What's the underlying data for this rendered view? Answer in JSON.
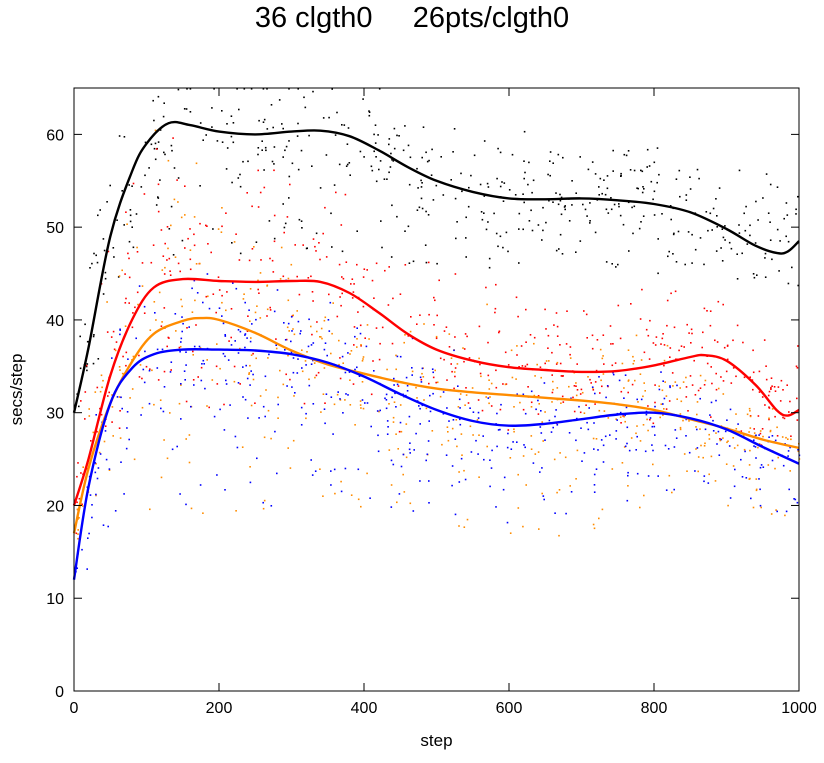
{
  "title": "36 clgth0     26pts/clgth0",
  "chart_data": {
    "type": "scatter",
    "title": "36 clgth0     26pts/clgth0",
    "xlabel": "step",
    "ylabel": "secs/step",
    "xlim": [
      0,
      1000
    ],
    "ylim": [
      0,
      65
    ],
    "xticks": [
      0,
      200,
      400,
      600,
      800,
      1000
    ],
    "yticks": [
      0,
      10,
      20,
      30,
      40,
      50,
      60
    ],
    "grid": false,
    "legend": "none",
    "series": [
      {
        "color": "#000000",
        "points": "scatter",
        "trend": [
          [
            0,
            30
          ],
          [
            20,
            37
          ],
          [
            50,
            49
          ],
          [
            80,
            56
          ],
          [
            100,
            59
          ],
          [
            130,
            61.2
          ],
          [
            160,
            61
          ],
          [
            200,
            60.3
          ],
          [
            250,
            60
          ],
          [
            300,
            60.3
          ],
          [
            340,
            60.4
          ],
          [
            380,
            59.8
          ],
          [
            420,
            58.3
          ],
          [
            460,
            56.5
          ],
          [
            500,
            55
          ],
          [
            550,
            53.8
          ],
          [
            600,
            53.1
          ],
          [
            650,
            53
          ],
          [
            700,
            53.1
          ],
          [
            750,
            52.9
          ],
          [
            800,
            52.5
          ],
          [
            850,
            51.6
          ],
          [
            900,
            49.8
          ],
          [
            940,
            48
          ],
          [
            970,
            47.2
          ],
          [
            985,
            47.4
          ],
          [
            1000,
            48.5
          ]
        ],
        "scatter_band": [
          [
            0,
            30,
            34
          ],
          [
            40,
            42,
            58
          ],
          [
            80,
            45,
            62
          ],
          [
            150,
            47,
            63
          ],
          [
            300,
            47,
            64
          ],
          [
            400,
            46,
            63
          ],
          [
            500,
            46,
            61
          ],
          [
            600,
            45,
            62
          ],
          [
            700,
            46,
            59
          ],
          [
            800,
            45,
            59
          ],
          [
            900,
            45,
            57
          ],
          [
            1000,
            43,
            55
          ]
        ]
      },
      {
        "color": "#ff0000",
        "points": "scatter",
        "trend": [
          [
            0,
            20
          ],
          [
            20,
            25
          ],
          [
            50,
            34
          ],
          [
            80,
            40
          ],
          [
            110,
            43.5
          ],
          [
            150,
            44.4
          ],
          [
            200,
            44.2
          ],
          [
            250,
            44.1
          ],
          [
            300,
            44.2
          ],
          [
            340,
            44.1
          ],
          [
            380,
            42.9
          ],
          [
            420,
            40.8
          ],
          [
            460,
            38.5
          ],
          [
            500,
            36.8
          ],
          [
            550,
            35.6
          ],
          [
            600,
            34.9
          ],
          [
            650,
            34.6
          ],
          [
            700,
            34.4
          ],
          [
            750,
            34.5
          ],
          [
            800,
            35.1
          ],
          [
            850,
            36
          ],
          [
            870,
            36.2
          ],
          [
            900,
            35.6
          ],
          [
            940,
            33
          ],
          [
            970,
            30.2
          ],
          [
            985,
            29.7
          ],
          [
            1000,
            30.3
          ]
        ],
        "scatter_band": [
          [
            0,
            20,
            30
          ],
          [
            50,
            26,
            50
          ],
          [
            100,
            30,
            60
          ],
          [
            200,
            30,
            60
          ],
          [
            300,
            30,
            58
          ],
          [
            400,
            28,
            52
          ],
          [
            500,
            28,
            46
          ],
          [
            600,
            28,
            44
          ],
          [
            700,
            29,
            41
          ],
          [
            800,
            28,
            44
          ],
          [
            900,
            27,
            43
          ],
          [
            1000,
            25,
            38
          ]
        ]
      },
      {
        "color": "#ff8c00",
        "points": "scatter",
        "trend": [
          [
            0,
            17
          ],
          [
            20,
            24
          ],
          [
            50,
            31
          ],
          [
            80,
            35.5
          ],
          [
            110,
            38.5
          ],
          [
            150,
            39.9
          ],
          [
            175,
            40.2
          ],
          [
            200,
            40
          ],
          [
            250,
            38.6
          ],
          [
            300,
            36.7
          ],
          [
            350,
            35.2
          ],
          [
            400,
            34.2
          ],
          [
            450,
            33.3
          ],
          [
            500,
            32.6
          ],
          [
            550,
            32.2
          ],
          [
            600,
            31.9
          ],
          [
            650,
            31.6
          ],
          [
            700,
            31.3
          ],
          [
            750,
            30.9
          ],
          [
            800,
            30.3
          ],
          [
            850,
            29.3
          ],
          [
            900,
            28.3
          ],
          [
            950,
            27.1
          ],
          [
            1000,
            26.2
          ]
        ],
        "scatter_band": [
          [
            0,
            17,
            22
          ],
          [
            50,
            18,
            45
          ],
          [
            100,
            18,
            62
          ],
          [
            200,
            19,
            55
          ],
          [
            300,
            19,
            45
          ],
          [
            400,
            19,
            40
          ],
          [
            500,
            18,
            38
          ],
          [
            600,
            17,
            37
          ],
          [
            700,
            16,
            36
          ],
          [
            800,
            20,
            40
          ],
          [
            900,
            20,
            32
          ],
          [
            1000,
            18,
            28
          ]
        ]
      },
      {
        "color": "#0000ff",
        "points": "scatter",
        "trend": [
          [
            0,
            12
          ],
          [
            20,
            22
          ],
          [
            50,
            31
          ],
          [
            80,
            34.8
          ],
          [
            110,
            36.3
          ],
          [
            150,
            36.8
          ],
          [
            200,
            36.8
          ],
          [
            250,
            36.7
          ],
          [
            300,
            36.3
          ],
          [
            350,
            35.4
          ],
          [
            400,
            33.9
          ],
          [
            450,
            32
          ],
          [
            500,
            30.3
          ],
          [
            550,
            29.1
          ],
          [
            600,
            28.6
          ],
          [
            650,
            28.8
          ],
          [
            700,
            29.3
          ],
          [
            750,
            29.8
          ],
          [
            800,
            30
          ],
          [
            850,
            29.4
          ],
          [
            900,
            28.2
          ],
          [
            950,
            26.3
          ],
          [
            1000,
            24.5
          ]
        ],
        "scatter_band": [
          [
            0,
            10,
            16
          ],
          [
            50,
            18,
            38
          ],
          [
            100,
            20,
            42
          ],
          [
            200,
            20,
            40
          ],
          [
            300,
            20,
            40
          ],
          [
            400,
            20,
            38
          ],
          [
            500,
            19,
            36
          ],
          [
            600,
            18,
            34
          ],
          [
            700,
            19,
            34
          ],
          [
            800,
            21,
            35
          ],
          [
            900,
            21,
            31
          ],
          [
            1000,
            18,
            24
          ]
        ]
      }
    ]
  }
}
